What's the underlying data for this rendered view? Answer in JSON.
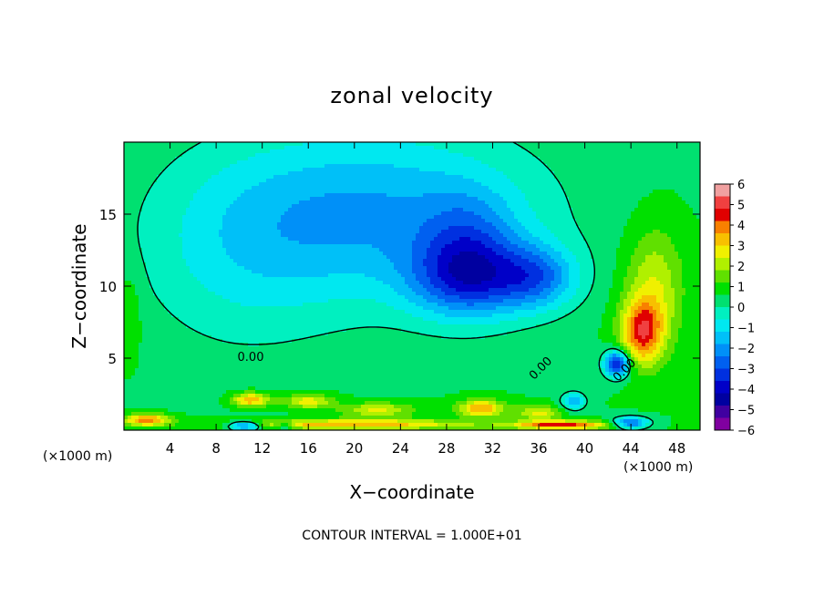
{
  "chart_data": {
    "type": "heatmap",
    "title": "zonal velocity",
    "xlabel": "X−coordinate",
    "ylabel": "Z−coordinate",
    "x_unit_left": "(×1000 m)",
    "x_unit_right": "(×1000 m)",
    "xlim": [
      0,
      50
    ],
    "ylim": [
      0,
      20
    ],
    "x_ticks": [
      4,
      8,
      12,
      16,
      20,
      24,
      28,
      32,
      36,
      40,
      44,
      48
    ],
    "y_ticks": [
      5,
      10,
      15
    ],
    "colorbar": {
      "ticks": [
        "6",
        "5",
        "4",
        "3",
        "2",
        "1",
        "0",
        "−1",
        "−2",
        "−3",
        "−4",
        "−5",
        "−6"
      ],
      "colors": [
        "#f0a0a0",
        "#f04040",
        "#e00000",
        "#f88000",
        "#f8c000",
        "#f0f000",
        "#b0f000",
        "#60e000",
        "#00e000",
        "#00e070",
        "#00f0c0",
        "#00e8f0",
        "#00c0f8",
        "#0090f8",
        "#0060f0",
        "#0030e0",
        "#0000c8",
        "#0000a0",
        "#4000a0",
        "#8000a0"
      ]
    },
    "contour_labels": [
      "0.00",
      "0.00",
      "0.00"
    ],
    "note": "CONTOUR INTERVAL = 1.000E+01",
    "field": {
      "background_value": 0.6,
      "blobs": [
        {
          "x": 22,
          "y": 15,
          "sx": 14,
          "sy": 6,
          "v": -2.4
        },
        {
          "x": 10,
          "y": 12,
          "sx": 9,
          "sy": 7,
          "v": -1.0
        },
        {
          "x": 30,
          "y": 10.6,
          "sx": 5,
          "sy": 2.8,
          "v": -3.6
        },
        {
          "x": 36,
          "y": 10.6,
          "sx": 3.5,
          "sy": 2.2,
          "v": -2.4
        },
        {
          "x": 30,
          "y": 14,
          "sx": 4,
          "sy": 3,
          "v": -1.2
        },
        {
          "x": 42.8,
          "y": 4.6,
          "sx": 1.1,
          "sy": 0.9,
          "v": -4.5
        },
        {
          "x": 39,
          "y": 2,
          "sx": 1,
          "sy": 0.6,
          "v": -2.5
        },
        {
          "x": 45,
          "y": 6.8,
          "sx": 1.8,
          "sy": 2.2,
          "v": 3.6
        },
        {
          "x": 46,
          "y": 10,
          "sx": 2.5,
          "sy": 4,
          "v": 1.8
        },
        {
          "x": 11,
          "y": 2.1,
          "sx": 1.6,
          "sy": 0.5,
          "v": 3.0
        },
        {
          "x": 16,
          "y": 2.0,
          "sx": 2.2,
          "sy": 0.5,
          "v": 2.2
        },
        {
          "x": 22,
          "y": 1.4,
          "sx": 3,
          "sy": 0.5,
          "v": 2.0
        },
        {
          "x": 31,
          "y": 1.5,
          "sx": 2,
          "sy": 0.6,
          "v": 3.0
        },
        {
          "x": 36,
          "y": 1.2,
          "sx": 2,
          "sy": 0.5,
          "v": 2.0
        },
        {
          "x": 2,
          "y": 0.7,
          "sx": 2,
          "sy": 0.4,
          "v": 3.4
        },
        {
          "x": 20,
          "y": 0.4,
          "sx": 10,
          "sy": 0.35,
          "v": 3.0
        },
        {
          "x": 38,
          "y": 0.35,
          "sx": 4,
          "sy": 0.3,
          "v": 4.0
        },
        {
          "x": 10.5,
          "y": 0.3,
          "sx": 1.5,
          "sy": 0.3,
          "v": -3.5
        },
        {
          "x": 14,
          "y": 0.3,
          "sx": 0.8,
          "sy": 0.25,
          "v": -2.0
        },
        {
          "x": 44,
          "y": 0.5,
          "sx": 1.5,
          "sy": 0.4,
          "v": -3.5
        },
        {
          "x": 0.5,
          "y": 8,
          "sx": 1,
          "sy": 3,
          "v": 0.8
        }
      ]
    }
  }
}
